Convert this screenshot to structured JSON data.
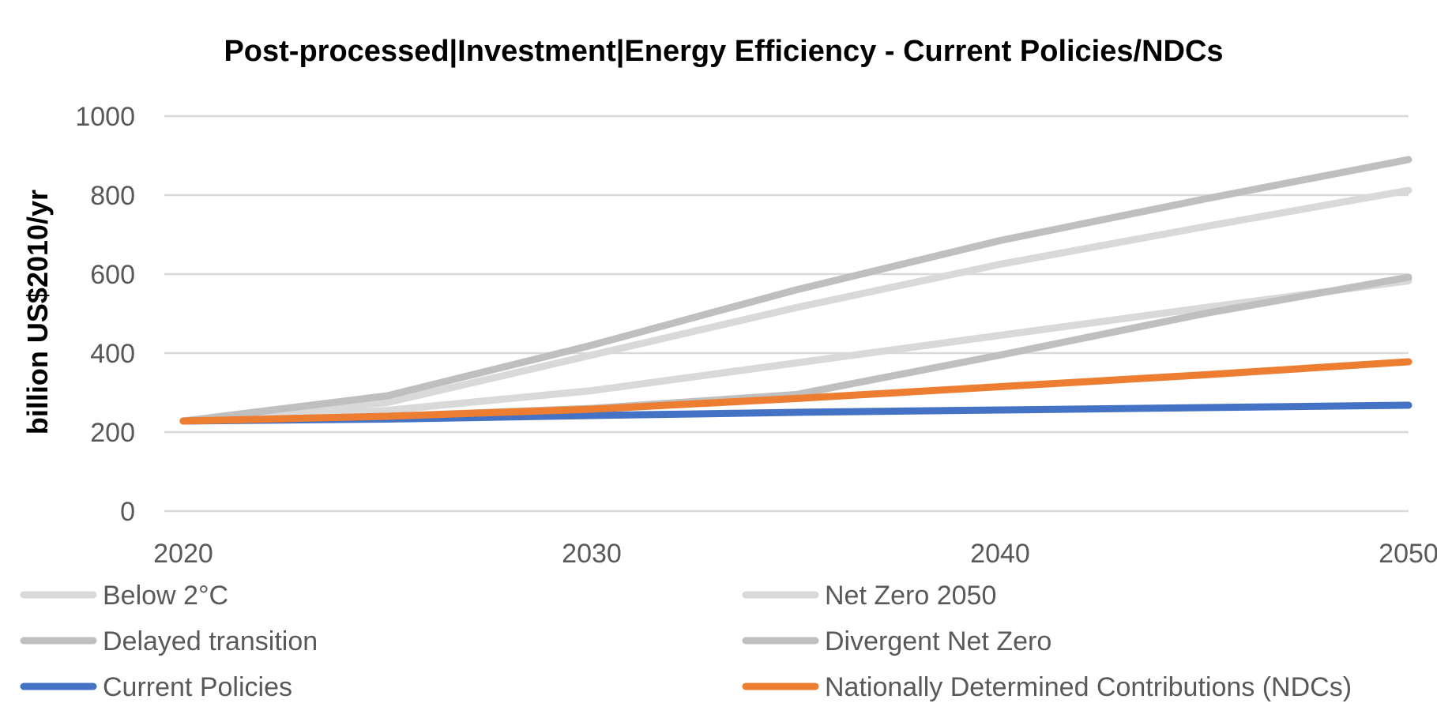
{
  "chart_data": {
    "type": "line",
    "title": "Post-processed|Investment|Energy Efficiency - Current Policies/NDCs",
    "ylabel": "billion US$2010/yr",
    "xlabel": "",
    "x": [
      2020,
      2025,
      2030,
      2035,
      2040,
      2045,
      2050
    ],
    "xticks": [
      "2020",
      "2030",
      "2040",
      "2050"
    ],
    "xlim": [
      2020,
      2050
    ],
    "ylim": [
      0,
      1000
    ],
    "yticks": [
      "0",
      "200",
      "400",
      "600",
      "800",
      "1000"
    ],
    "grid": true,
    "legend_position": "bottom",
    "series": [
      {
        "name": "Below 2°C",
        "color": "#d9d9d9",
        "values": [
          228,
          255,
          305,
          375,
          445,
          515,
          583
        ]
      },
      {
        "name": "Net Zero 2050",
        "color": "#d9d9d9",
        "values": [
          228,
          275,
          395,
          515,
          625,
          720,
          812
        ]
      },
      {
        "name": "Delayed transition",
        "color": "#bfbfbf",
        "values": [
          228,
          240,
          260,
          295,
          395,
          500,
          592
        ]
      },
      {
        "name": "Divergent Net Zero",
        "color": "#bfbfbf",
        "values": [
          228,
          292,
          420,
          560,
          685,
          790,
          890
        ]
      },
      {
        "name": "Current Policies",
        "color": "#4472c4",
        "values": [
          228,
          233,
          242,
          250,
          256,
          262,
          268
        ]
      },
      {
        "name": "Nationally Determined Contributions (NDCs)",
        "color": "#ed7d31",
        "values": [
          228,
          240,
          258,
          285,
          315,
          345,
          378
        ]
      }
    ]
  }
}
